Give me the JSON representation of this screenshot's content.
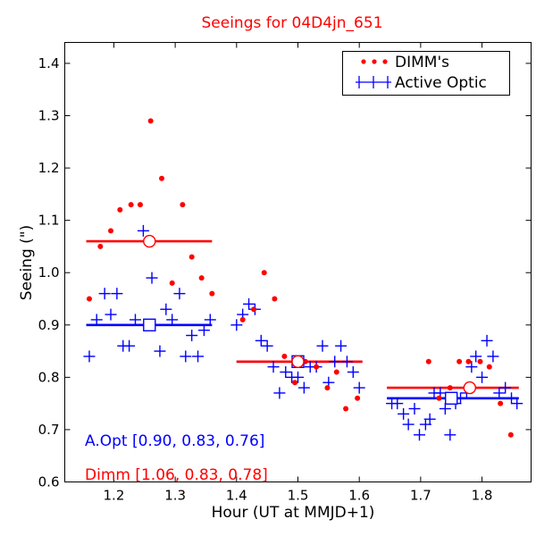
{
  "chart_data": {
    "type": "scatter",
    "title": "Seeings for 04D4jn_651",
    "xlabel": "Hour (UT at MMJD+1)",
    "ylabel": "Seeing (\")",
    "xlim": [
      1.12,
      1.88
    ],
    "ylim": [
      0.6,
      1.44
    ],
    "xticks": [
      "1.2",
      "1.3",
      "1.4",
      "1.5",
      "1.6",
      "1.7",
      "1.8"
    ],
    "xtick_values": [
      1.2,
      1.3,
      1.4,
      1.5,
      1.6,
      1.7,
      1.8
    ],
    "yticks": [
      "0.6",
      "0.7",
      "0.8",
      "0.9",
      "1.0",
      "1.1",
      "1.2",
      "1.3",
      "1.4"
    ],
    "ytick_values": [
      0.6,
      0.7,
      0.8,
      0.9,
      1.0,
      1.1,
      1.2,
      1.3,
      1.4
    ],
    "legend": {
      "position": "top-right",
      "entries": [
        "DIMM's",
        "Active Optic"
      ]
    },
    "colors": {
      "dimm": "#ff0000",
      "aopt": "#0000ff",
      "axis": "#000000"
    },
    "series": [
      {
        "name": "DIMM's",
        "marker": "dot",
        "points": [
          [
            1.16,
            0.95
          ],
          [
            1.178,
            1.05
          ],
          [
            1.195,
            1.08
          ],
          [
            1.21,
            1.12
          ],
          [
            1.228,
            1.13
          ],
          [
            1.243,
            1.13
          ],
          [
            1.26,
            1.29
          ],
          [
            1.278,
            1.18
          ],
          [
            1.295,
            0.98
          ],
          [
            1.312,
            1.13
          ],
          [
            1.327,
            1.03
          ],
          [
            1.343,
            0.99
          ],
          [
            1.36,
            0.96
          ],
          [
            1.41,
            0.91
          ],
          [
            1.428,
            0.93
          ],
          [
            1.445,
            1.0
          ],
          [
            1.462,
            0.95
          ],
          [
            1.478,
            0.84
          ],
          [
            1.495,
            0.79
          ],
          [
            1.512,
            0.83
          ],
          [
            1.53,
            0.82
          ],
          [
            1.548,
            0.78
          ],
          [
            1.563,
            0.81
          ],
          [
            1.578,
            0.74
          ],
          [
            1.597,
            0.76
          ],
          [
            1.713,
            0.83
          ],
          [
            1.73,
            0.76
          ],
          [
            1.748,
            0.78
          ],
          [
            1.763,
            0.83
          ],
          [
            1.778,
            0.83
          ],
          [
            1.797,
            0.83
          ],
          [
            1.812,
            0.82
          ],
          [
            1.83,
            0.75
          ],
          [
            1.847,
            0.69
          ]
        ]
      },
      {
        "name": "Active Optic",
        "marker": "plus",
        "points": [
          [
            1.16,
            0.84
          ],
          [
            1.172,
            0.91
          ],
          [
            1.185,
            0.96
          ],
          [
            1.195,
            0.92
          ],
          [
            1.205,
            0.96
          ],
          [
            1.215,
            0.86
          ],
          [
            1.225,
            0.86
          ],
          [
            1.235,
            0.91
          ],
          [
            1.248,
            1.08
          ],
          [
            1.262,
            0.99
          ],
          [
            1.275,
            0.85
          ],
          [
            1.285,
            0.93
          ],
          [
            1.295,
            0.91
          ],
          [
            1.307,
            0.96
          ],
          [
            1.317,
            0.84
          ],
          [
            1.327,
            0.88
          ],
          [
            1.337,
            0.84
          ],
          [
            1.347,
            0.89
          ],
          [
            1.357,
            0.91
          ],
          [
            1.4,
            0.9
          ],
          [
            1.41,
            0.92
          ],
          [
            1.42,
            0.94
          ],
          [
            1.43,
            0.93
          ],
          [
            1.44,
            0.87
          ],
          [
            1.45,
            0.86
          ],
          [
            1.46,
            0.82
          ],
          [
            1.47,
            0.77
          ],
          [
            1.48,
            0.81
          ],
          [
            1.49,
            0.8
          ],
          [
            1.5,
            0.8
          ],
          [
            1.51,
            0.78
          ],
          [
            1.52,
            0.82
          ],
          [
            1.53,
            0.82
          ],
          [
            1.54,
            0.86
          ],
          [
            1.55,
            0.79
          ],
          [
            1.56,
            0.83
          ],
          [
            1.57,
            0.86
          ],
          [
            1.58,
            0.83
          ],
          [
            1.59,
            0.81
          ],
          [
            1.6,
            0.78
          ],
          [
            1.653,
            0.75
          ],
          [
            1.662,
            0.75
          ],
          [
            1.672,
            0.73
          ],
          [
            1.68,
            0.71
          ],
          [
            1.69,
            0.74
          ],
          [
            1.698,
            0.69
          ],
          [
            1.708,
            0.71
          ],
          [
            1.715,
            0.72
          ],
          [
            1.722,
            0.77
          ],
          [
            1.732,
            0.77
          ],
          [
            1.74,
            0.74
          ],
          [
            1.748,
            0.69
          ],
          [
            1.757,
            0.75
          ],
          [
            1.765,
            0.76
          ],
          [
            1.775,
            0.77
          ],
          [
            1.783,
            0.82
          ],
          [
            1.79,
            0.84
          ],
          [
            1.8,
            0.8
          ],
          [
            1.808,
            0.87
          ],
          [
            1.818,
            0.84
          ],
          [
            1.828,
            0.77
          ],
          [
            1.838,
            0.78
          ],
          [
            1.848,
            0.76
          ],
          [
            1.857,
            0.75
          ]
        ]
      }
    ],
    "means": [
      {
        "series": "Active Optic",
        "x_range": [
          1.155,
          1.36
        ],
        "value": 0.9,
        "x_center": 1.258
      },
      {
        "series": "Active Optic",
        "x_range": [
          1.4,
          1.605
        ],
        "value": 0.83,
        "x_center": 1.5
      },
      {
        "series": "Active Optic",
        "x_range": [
          1.645,
          1.86
        ],
        "value": 0.76,
        "x_center": 1.75
      },
      {
        "series": "DIMM's",
        "x_range": [
          1.155,
          1.36
        ],
        "value": 1.06,
        "x_center": 1.258
      },
      {
        "series": "DIMM's",
        "x_range": [
          1.4,
          1.605
        ],
        "value": 0.83,
        "x_center": 1.5
      },
      {
        "series": "DIMM's",
        "x_range": [
          1.645,
          1.86
        ],
        "value": 0.78,
        "x_center": 1.78
      }
    ],
    "annotations": [
      {
        "text": "A.Opt [0.90, 0.83, 0.76]",
        "color": "#0000ff"
      },
      {
        "text": "Dimm [1.06, 0.83, 0.78]",
        "color": "#ff0000"
      }
    ]
  }
}
